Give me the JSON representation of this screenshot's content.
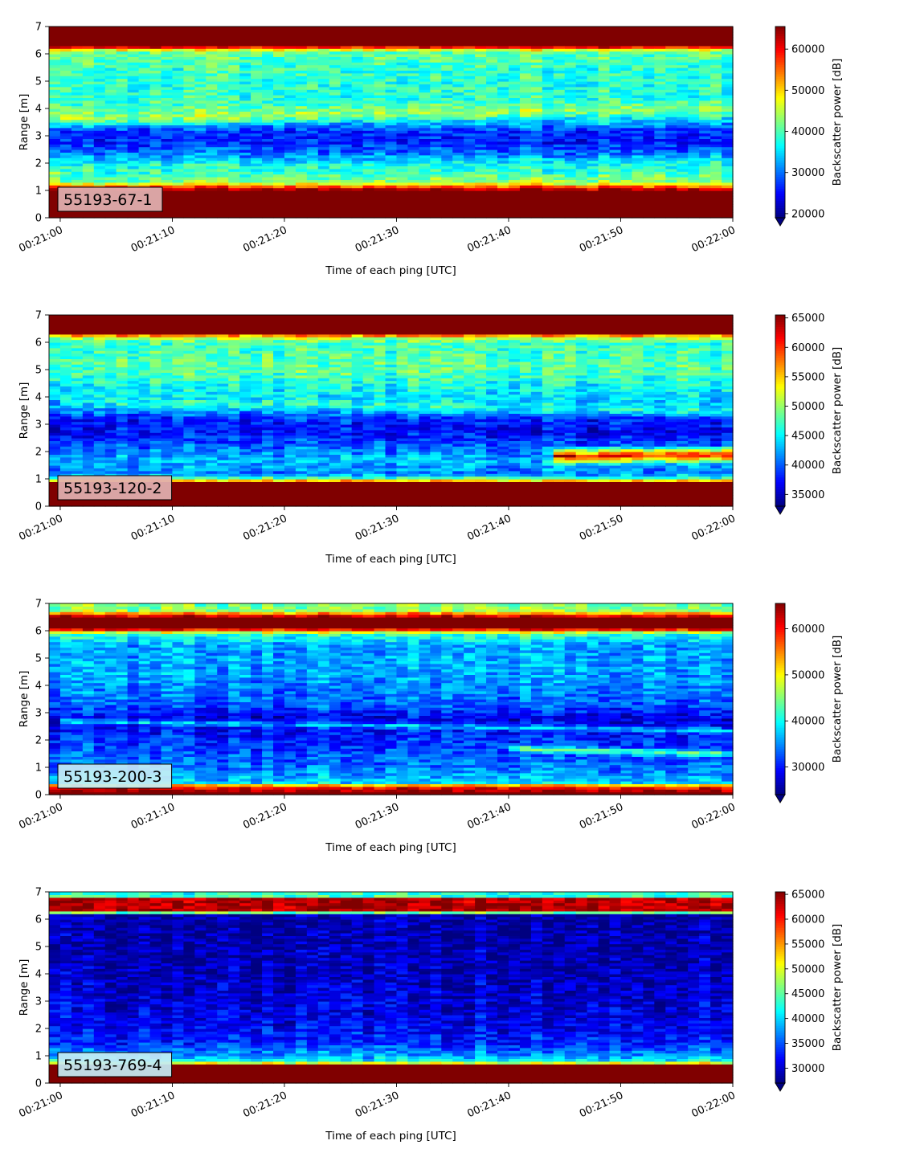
{
  "chart_data": [
    {
      "type": "heatmap",
      "panel_label": "55193-67-1",
      "xlabel": "Time of each ping [UTC]",
      "ylabel": "Range [m]",
      "colorbar_label": "Backscatter power [dB]",
      "colormap": "jet",
      "xlim": [
        "00:20:59",
        "00:22:00"
      ],
      "ylim": [
        0,
        7
      ],
      "x_ticks": [
        "00:21:00",
        "00:21:10",
        "00:21:20",
        "00:21:30",
        "00:21:40",
        "00:21:50",
        "00:22:00"
      ],
      "y_ticks": [
        0,
        1,
        2,
        3,
        4,
        5,
        6,
        7
      ],
      "clim": [
        19000,
        65500
      ],
      "colorbar_ticks": [
        20000,
        30000,
        40000,
        50000,
        60000
      ],
      "label_box_color": "#e2b2b2",
      "range_profile": [
        {
          "range": 0.0,
          "value": 65500
        },
        {
          "range": 0.2,
          "value": 65500
        },
        {
          "range": 1.0,
          "value": 65500
        },
        {
          "range": 1.15,
          "value": 56000
        },
        {
          "range": 1.3,
          "value": 44000
        },
        {
          "range": 1.7,
          "value": 40000
        },
        {
          "range": 2.0,
          "value": 35000
        },
        {
          "range": 2.3,
          "value": 31000
        },
        {
          "range": 2.8,
          "value": 26000
        },
        {
          "range": 3.2,
          "value": 27000
        },
        {
          "range": 3.5,
          "value": 34000
        },
        {
          "range": 3.9,
          "value": 40000
        },
        {
          "range": 4.5,
          "value": 38000
        },
        {
          "range": 5.5,
          "value": 39000
        },
        {
          "range": 6.1,
          "value": 41000
        },
        {
          "range": 6.3,
          "value": 65500
        },
        {
          "range": 7.0,
          "value": 65500
        }
      ],
      "features": [
        {
          "t0": "00:21:00",
          "t1": "00:22:00",
          "r0": 3.65,
          "r1": 4.05,
          "value": 44000,
          "width": 0.35
        },
        {
          "t0": "00:21:00",
          "t1": "00:22:00",
          "r0": 1.6,
          "r1": 2.0,
          "value": 38000,
          "width": 0.4
        }
      ]
    },
    {
      "type": "heatmap",
      "panel_label": "55193-120-2",
      "xlabel": "Time of each ping [UTC]",
      "ylabel": "Range [m]",
      "colorbar_label": "Backscatter power [dB]",
      "colormap": "jet",
      "xlim": [
        "00:20:59",
        "00:22:00"
      ],
      "ylim": [
        0,
        7
      ],
      "x_ticks": [
        "00:21:00",
        "00:21:10",
        "00:21:20",
        "00:21:30",
        "00:21:40",
        "00:21:50",
        "00:22:00"
      ],
      "y_ticks": [
        0,
        1,
        2,
        3,
        4,
        5,
        6,
        7
      ],
      "clim": [
        33000,
        65500
      ],
      "colorbar_ticks": [
        35000,
        40000,
        45000,
        50000,
        55000,
        60000,
        65000
      ],
      "label_box_color": "#e2b2b2",
      "range_profile": [
        {
          "range": 0.0,
          "value": 65500
        },
        {
          "range": 0.2,
          "value": 65500
        },
        {
          "range": 0.85,
          "value": 65500
        },
        {
          "range": 1.0,
          "value": 49000
        },
        {
          "range": 1.2,
          "value": 41000
        },
        {
          "range": 1.7,
          "value": 43000
        },
        {
          "range": 2.2,
          "value": 40000
        },
        {
          "range": 2.7,
          "value": 37000
        },
        {
          "range": 3.2,
          "value": 38000
        },
        {
          "range": 3.6,
          "value": 43000
        },
        {
          "range": 4.3,
          "value": 45000
        },
        {
          "range": 5.0,
          "value": 48000
        },
        {
          "range": 6.0,
          "value": 47000
        },
        {
          "range": 6.2,
          "value": 52000
        },
        {
          "range": 6.35,
          "value": 65500
        },
        {
          "range": 7.0,
          "value": 65500
        }
      ],
      "features": [
        {
          "t0": "00:21:44",
          "t1": "00:22:00",
          "r0": 1.85,
          "r1": 1.9,
          "value": 62000,
          "width": 0.35
        },
        {
          "t0": "00:21:00",
          "t1": "00:22:00",
          "r0": 3.9,
          "r1": 3.5,
          "value": 46000,
          "width": 0.3
        }
      ]
    },
    {
      "type": "heatmap",
      "panel_label": "55193-200-3",
      "xlabel": "Time of each ping [UTC]",
      "ylabel": "Range [m]",
      "colorbar_label": "Backscatter power [dB]",
      "colormap": "jet",
      "xlim": [
        "00:20:59",
        "00:22:00"
      ],
      "ylim": [
        0,
        7
      ],
      "x_ticks": [
        "00:21:00",
        "00:21:10",
        "00:21:20",
        "00:21:30",
        "00:21:40",
        "00:21:50",
        "00:22:00"
      ],
      "y_ticks": [
        0,
        1,
        2,
        3,
        4,
        5,
        6,
        7
      ],
      "clim": [
        24000,
        65500
      ],
      "colorbar_ticks": [
        30000,
        40000,
        50000,
        60000
      ],
      "label_box_color": "#c6ebf5",
      "range_profile": [
        {
          "range": 0.0,
          "value": 65500
        },
        {
          "range": 0.1,
          "value": 65500
        },
        {
          "range": 0.3,
          "value": 60000
        },
        {
          "range": 0.45,
          "value": 38000
        },
        {
          "range": 1.0,
          "value": 34000
        },
        {
          "range": 2.0,
          "value": 31000
        },
        {
          "range": 2.8,
          "value": 28000
        },
        {
          "range": 3.3,
          "value": 33000
        },
        {
          "range": 4.5,
          "value": 36000
        },
        {
          "range": 5.5,
          "value": 36000
        },
        {
          "range": 5.9,
          "value": 42000
        },
        {
          "range": 6.1,
          "value": 65500
        },
        {
          "range": 6.5,
          "value": 65500
        },
        {
          "range": 6.75,
          "value": 46000
        },
        {
          "range": 7.0,
          "value": 44000
        }
      ],
      "features": [
        {
          "t0": "00:21:00",
          "t1": "00:22:00",
          "r0": 2.7,
          "r1": 2.35,
          "value": 38000,
          "width": 0.15
        },
        {
          "t0": "00:21:40",
          "t1": "00:22:00",
          "r0": 1.7,
          "r1": 1.5,
          "value": 44000,
          "width": 0.18
        }
      ]
    },
    {
      "type": "heatmap",
      "panel_label": "55193-769-4",
      "xlabel": "Time of each ping [UTC]",
      "ylabel": "Range [m]",
      "colorbar_label": "Backscatter power [dB]",
      "colormap": "jet",
      "xlim": [
        "00:20:59",
        "00:22:00"
      ],
      "ylim": [
        0,
        7
      ],
      "x_ticks": [
        "00:21:00",
        "00:21:10",
        "00:21:20",
        "00:21:30",
        "00:21:40",
        "00:21:50",
        "00:22:00"
      ],
      "y_ticks": [
        0,
        1,
        2,
        3,
        4,
        5,
        6,
        7
      ],
      "clim": [
        27000,
        65500
      ],
      "colorbar_ticks": [
        30000,
        35000,
        40000,
        45000,
        50000,
        55000,
        60000,
        65000
      ],
      "label_box_color": "#c6ebf5",
      "range_profile": [
        {
          "range": 0.0,
          "value": 65500
        },
        {
          "range": 0.2,
          "value": 65500
        },
        {
          "range": 0.65,
          "value": 65500
        },
        {
          "range": 0.8,
          "value": 42000
        },
        {
          "range": 1.0,
          "value": 38000
        },
        {
          "range": 1.5,
          "value": 33000
        },
        {
          "range": 2.5,
          "value": 31000
        },
        {
          "range": 4.0,
          "value": 29500
        },
        {
          "range": 6.2,
          "value": 28500
        },
        {
          "range": 6.3,
          "value": 64000
        },
        {
          "range": 6.75,
          "value": 64000
        },
        {
          "range": 6.85,
          "value": 44000
        },
        {
          "range": 7.0,
          "value": 42000
        }
      ],
      "features": []
    }
  ]
}
